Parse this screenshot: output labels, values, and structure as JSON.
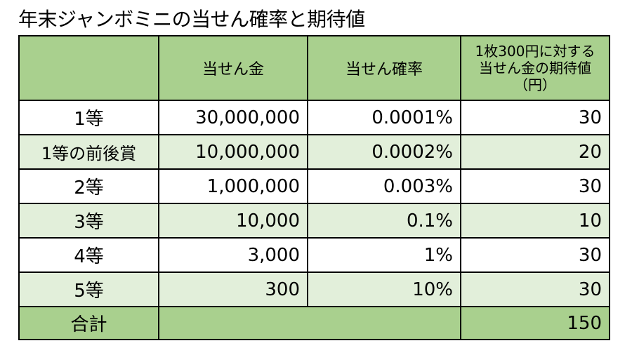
{
  "title": "年末ジャンボミニの当せん確率と期待値",
  "colors": {
    "header_fill": "#a9d08e",
    "band_fill": "#e2efda",
    "border": "#000000"
  },
  "table": {
    "headers": {
      "blank": "",
      "prize": "当せん金",
      "probability": "当せん確率",
      "expected": "1枚300円に対する当せん金の期待値（円）"
    },
    "rows": [
      {
        "grade": "1等",
        "prize": "30,000,000",
        "probability": "0.0001%",
        "expected": "30"
      },
      {
        "grade": "1等の前後賞",
        "prize": "10,000,000",
        "probability": "0.0002%",
        "expected": "20"
      },
      {
        "grade": "2等",
        "prize": "1,000,000",
        "probability": "0.003%",
        "expected": "30"
      },
      {
        "grade": "3等",
        "prize": "10,000",
        "probability": "0.1%",
        "expected": "10"
      },
      {
        "grade": "4等",
        "prize": "3,000",
        "probability": "1%",
        "expected": "30"
      },
      {
        "grade": "5等",
        "prize": "300",
        "probability": "10%",
        "expected": "30"
      }
    ],
    "total": {
      "label": "合計",
      "expected": "150"
    }
  }
}
